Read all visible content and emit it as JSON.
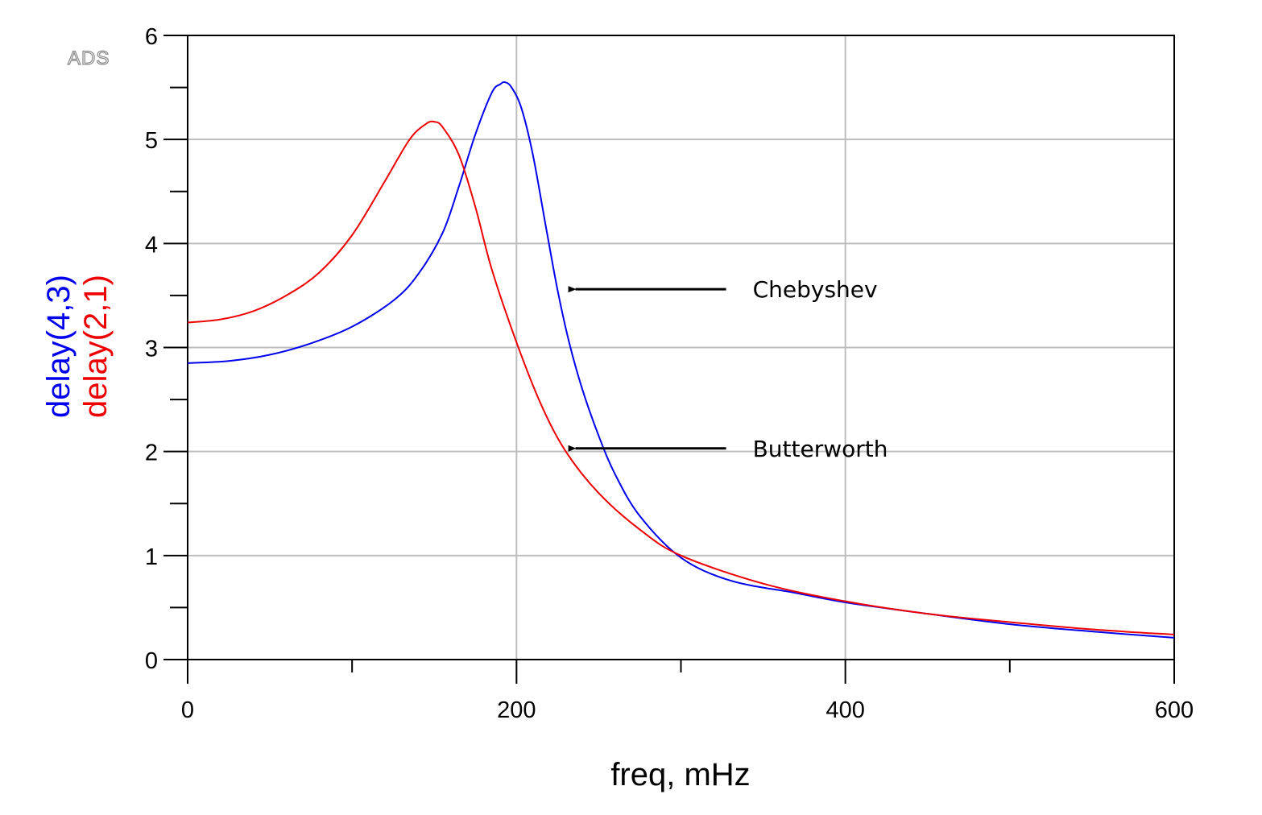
{
  "chart_data": {
    "type": "line",
    "watermark": "ADS",
    "xlabel": "freq, mHz",
    "ylabel_parts": [
      {
        "text": "delay(4,3)",
        "color": "#0000ee"
      },
      {
        "text": "delay(2,1)",
        "color": "#ee0000"
      }
    ],
    "xlim": [
      0,
      600
    ],
    "ylim": [
      0,
      6
    ],
    "x_ticks": [
      0,
      200,
      400,
      600
    ],
    "x_minor_ticks": [
      100,
      300,
      500
    ],
    "y_ticks": [
      0,
      1,
      2,
      3,
      4,
      5,
      6
    ],
    "y_minor_ticks": [
      0.5,
      1.5,
      2.5,
      3.5,
      4.5,
      5.5
    ],
    "grid": true,
    "series": [
      {
        "name": "delay(4,3)",
        "color": "#0000ee",
        "x": [
          0,
          25,
          50,
          75,
          100,
          125,
          140,
          155,
          165,
          175,
          185,
          190,
          193,
          197,
          203,
          210,
          218,
          225,
          232,
          240,
          250,
          260,
          275,
          300,
          330,
          370,
          400,
          450,
          500,
          550,
          600
        ],
        "y": [
          2.85,
          2.87,
          2.93,
          3.04,
          3.2,
          3.45,
          3.7,
          4.1,
          4.55,
          5.05,
          5.45,
          5.53,
          5.55,
          5.5,
          5.3,
          4.85,
          4.15,
          3.55,
          3.05,
          2.6,
          2.15,
          1.78,
          1.38,
          0.98,
          0.76,
          0.64,
          0.55,
          0.44,
          0.34,
          0.27,
          0.21
        ]
      },
      {
        "name": "delay(2,1)",
        "color": "#ee0000",
        "x": [
          0,
          20,
          40,
          60,
          80,
          100,
          120,
          135,
          145,
          150,
          155,
          165,
          175,
          185,
          200,
          215,
          230,
          250,
          275,
          300,
          350,
          400,
          450,
          500,
          550,
          600
        ],
        "y": [
          3.24,
          3.27,
          3.35,
          3.5,
          3.72,
          4.08,
          4.6,
          5.0,
          5.15,
          5.17,
          5.12,
          4.85,
          4.35,
          3.75,
          3.05,
          2.45,
          2.0,
          1.6,
          1.25,
          1.0,
          0.73,
          0.56,
          0.44,
          0.36,
          0.29,
          0.24
        ]
      }
    ],
    "annotations": [
      {
        "text": "Chebyshev",
        "x": 230,
        "y": 3.56
      },
      {
        "text": "Butterworth",
        "x": 230,
        "y": 2.03
      }
    ]
  }
}
